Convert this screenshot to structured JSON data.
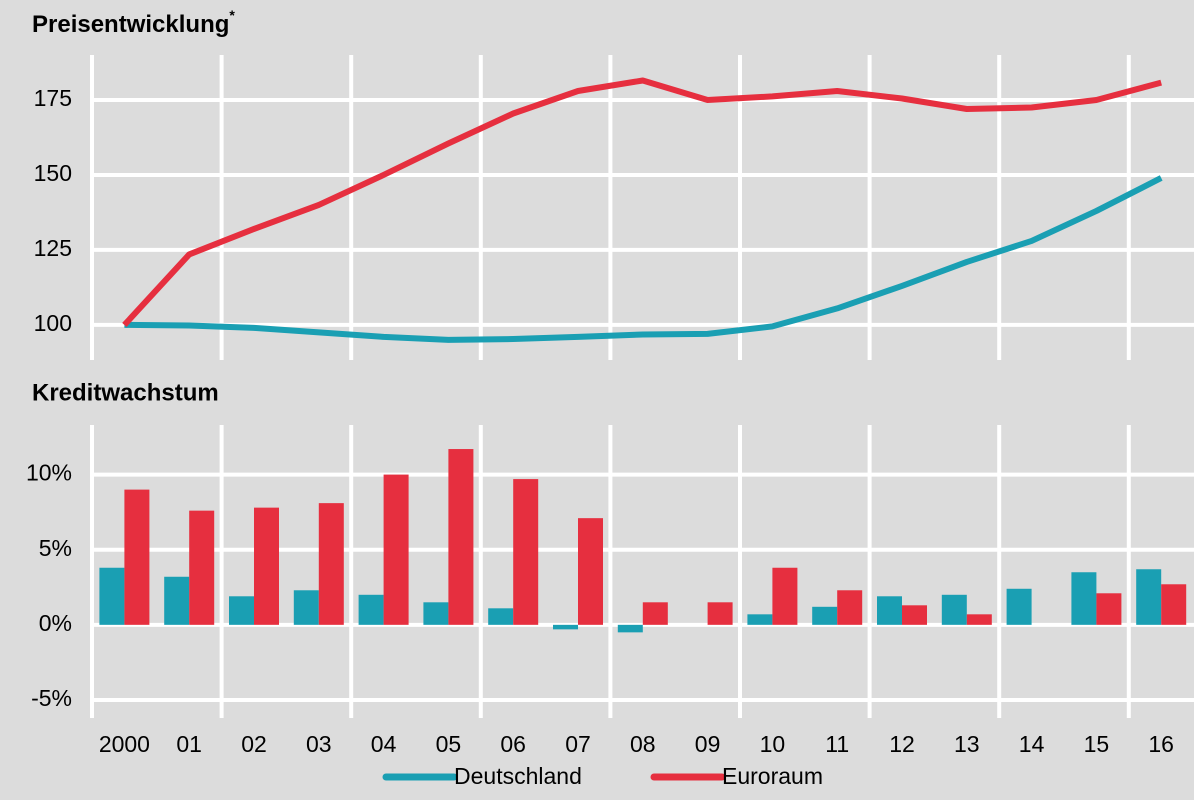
{
  "chart_data": [
    {
      "type": "line",
      "title": "Preisentwicklung",
      "title_marker": "*",
      "series": [
        {
          "color": "#1a9fb3",
          "values": [
            100,
            99.8,
            99,
            97.5,
            96,
            95,
            95.3,
            96,
            96.8,
            97,
            99.5,
            105.5,
            113,
            121,
            128,
            138,
            149
          ]
        },
        {
          "color": "#e62f3f",
          "values": [
            100,
            123.5,
            132,
            140,
            150,
            160.5,
            170.5,
            178,
            181.5,
            175,
            176.2,
            178,
            175.5,
            172,
            172.5,
            175,
            180.8
          ]
        }
      ],
      "ylim": [
        88.3,
        190
      ],
      "yticks": [
        100,
        125,
        150,
        175
      ],
      "grid": true
    },
    {
      "type": "bar",
      "title": "Kreditwachstum",
      "categories": [
        "2000",
        "01",
        "02",
        "03",
        "04",
        "05",
        "06",
        "07",
        "08",
        "09",
        "10",
        "11",
        "12",
        "13",
        "14",
        "15",
        "16"
      ],
      "series": [
        {
          "name": "Deutschland",
          "color": "#1a9fb3",
          "values": [
            3.8,
            3.2,
            1.9,
            2.3,
            2.0,
            1.5,
            1.1,
            -0.3,
            -0.5,
            0,
            0.7,
            1.2,
            1.9,
            2.0,
            2.4,
            3.5,
            3.7
          ]
        },
        {
          "name": "Euroraum",
          "color": "#e62f3f",
          "values": [
            9.0,
            7.6,
            7.8,
            8.1,
            10.0,
            11.7,
            9.7,
            7.1,
            1.5,
            1.5,
            3.8,
            2.3,
            1.3,
            0.7,
            0,
            2.1,
            2.7
          ]
        }
      ],
      "ylim": [
        -6.2,
        13.3
      ],
      "yticks": [
        {
          "value": -5,
          "label": "-5%"
        },
        {
          "value": 0,
          "label": "0%"
        },
        {
          "value": 5,
          "label": "5%"
        },
        {
          "value": 10,
          "label": "10%"
        }
      ],
      "grid": true
    }
  ]
}
